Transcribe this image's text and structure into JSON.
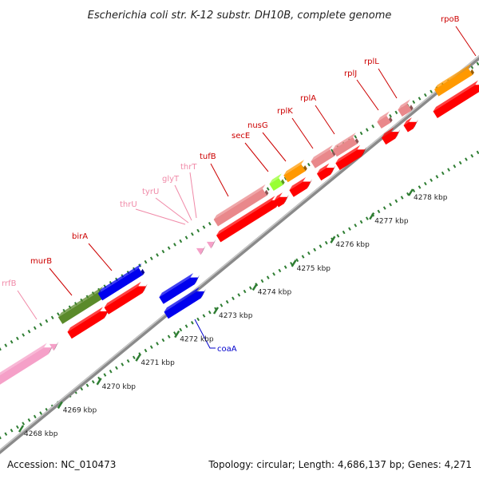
{
  "title": "Escherichia coli str. K-12 substr. DH10B, complete genome",
  "footer": {
    "accession": "Accession: NC_010473",
    "summary": "Topology: circular; Length: 4,686,137 bp; Genes: 4,271"
  },
  "colors": {
    "background": "#ffffff",
    "backbone": "#8a8a8a",
    "tick": "#2e7d32",
    "label_red": "#cc0000",
    "label_pink": "#f08aa8",
    "label_blue": "#0000cc",
    "cds_red": "#ff0000",
    "rna_pink": "#f5a0c8",
    "gene_salmon": "#e9888b",
    "gene_blue": "#0000ee",
    "gene_olive": "#5a8a2a",
    "gene_lime": "#99ff33",
    "gene_orange": "#ff9900"
  },
  "ruler": {
    "unit": "kbp",
    "ticks": [
      {
        "pos": 4268,
        "label": "4268 kbp"
      },
      {
        "pos": 4269,
        "label": "4269 kbp"
      },
      {
        "pos": 4270,
        "label": "4270 kbp"
      },
      {
        "pos": 4271,
        "label": "4271 kbp"
      },
      {
        "pos": 4272,
        "label": "4272 kbp"
      },
      {
        "pos": 4273,
        "label": "4273 kbp"
      },
      {
        "pos": 4274,
        "label": "4274 kbp"
      },
      {
        "pos": 4275,
        "label": "4275 kbp"
      },
      {
        "pos": 4276,
        "label": "4276 kbp"
      },
      {
        "pos": 4277,
        "label": "4277 kbp"
      },
      {
        "pos": 4278,
        "label": "4278 kbp"
      }
    ]
  },
  "genes": [
    {
      "name": "rrfB",
      "label_color": "pink"
    },
    {
      "name": "murB",
      "label_color": "red"
    },
    {
      "name": "birA",
      "label_color": "red"
    },
    {
      "name": "thrU",
      "label_color": "pink"
    },
    {
      "name": "tyrU",
      "label_color": "pink"
    },
    {
      "name": "glyT",
      "label_color": "pink"
    },
    {
      "name": "thrT",
      "label_color": "pink"
    },
    {
      "name": "tufB",
      "label_color": "red"
    },
    {
      "name": "secE",
      "label_color": "red"
    },
    {
      "name": "nusG",
      "label_color": "red"
    },
    {
      "name": "rplK",
      "label_color": "red"
    },
    {
      "name": "rplA",
      "label_color": "red"
    },
    {
      "name": "rplJ",
      "label_color": "red"
    },
    {
      "name": "rplL",
      "label_color": "red"
    },
    {
      "name": "rpoB",
      "label_color": "red"
    },
    {
      "name": "coaA",
      "label_color": "blue"
    }
  ]
}
